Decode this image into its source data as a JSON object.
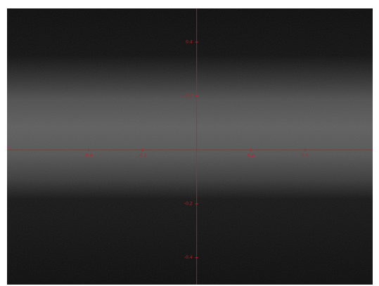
{
  "chart_data": {
    "type": "image",
    "xlim": [
      -0.7,
      0.65
    ],
    "ylim": [
      -0.5,
      0.525
    ],
    "xticks": [
      -0.4,
      -0.2,
      0.2,
      0.4
    ],
    "yticks": [
      0.4,
      0.2,
      -0.2,
      -0.4
    ],
    "axis_color": "#b8232b"
  }
}
